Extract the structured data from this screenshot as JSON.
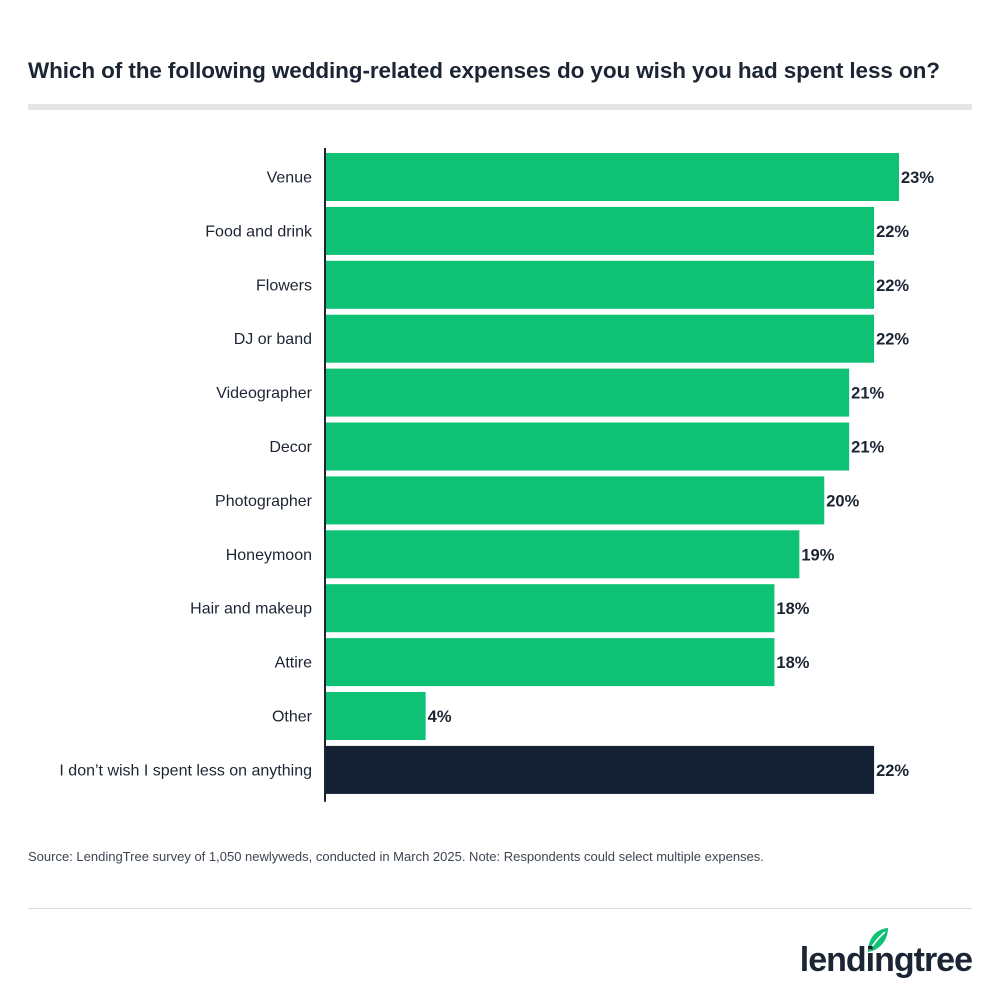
{
  "title": "Which of the following wedding-related expenses do you wish you had spent less on?",
  "source": "Source: LendingTree survey of 1,050 newlyweds, conducted in March 2025. Note: Respondents could select multiple expenses.",
  "brand": {
    "name": "lendingtree",
    "icon": "leaf-icon"
  },
  "colors": {
    "primary_bar": "#0fc174",
    "highlight_bar": "#142132",
    "text": "#1c2533",
    "brand_green": "#0fc174"
  },
  "chart_data": {
    "type": "bar",
    "orientation": "horizontal",
    "categories": [
      "Venue",
      "Food and drink",
      "Flowers",
      "DJ or band",
      "Videographer",
      "Decor",
      "Photographer",
      "Honeymoon",
      "Hair and makeup",
      "Attire",
      "Other",
      "I don’t wish I spent less on anything"
    ],
    "values": [
      23,
      22,
      22,
      22,
      21,
      21,
      20,
      19,
      18,
      18,
      4,
      22
    ],
    "value_labels": [
      "23%",
      "22%",
      "22%",
      "22%",
      "21%",
      "21%",
      "20%",
      "19%",
      "18%",
      "18%",
      "4%",
      "22%"
    ],
    "highlight_index": 11,
    "xlim": [
      0,
      23
    ],
    "unit": "%",
    "grid": false
  }
}
